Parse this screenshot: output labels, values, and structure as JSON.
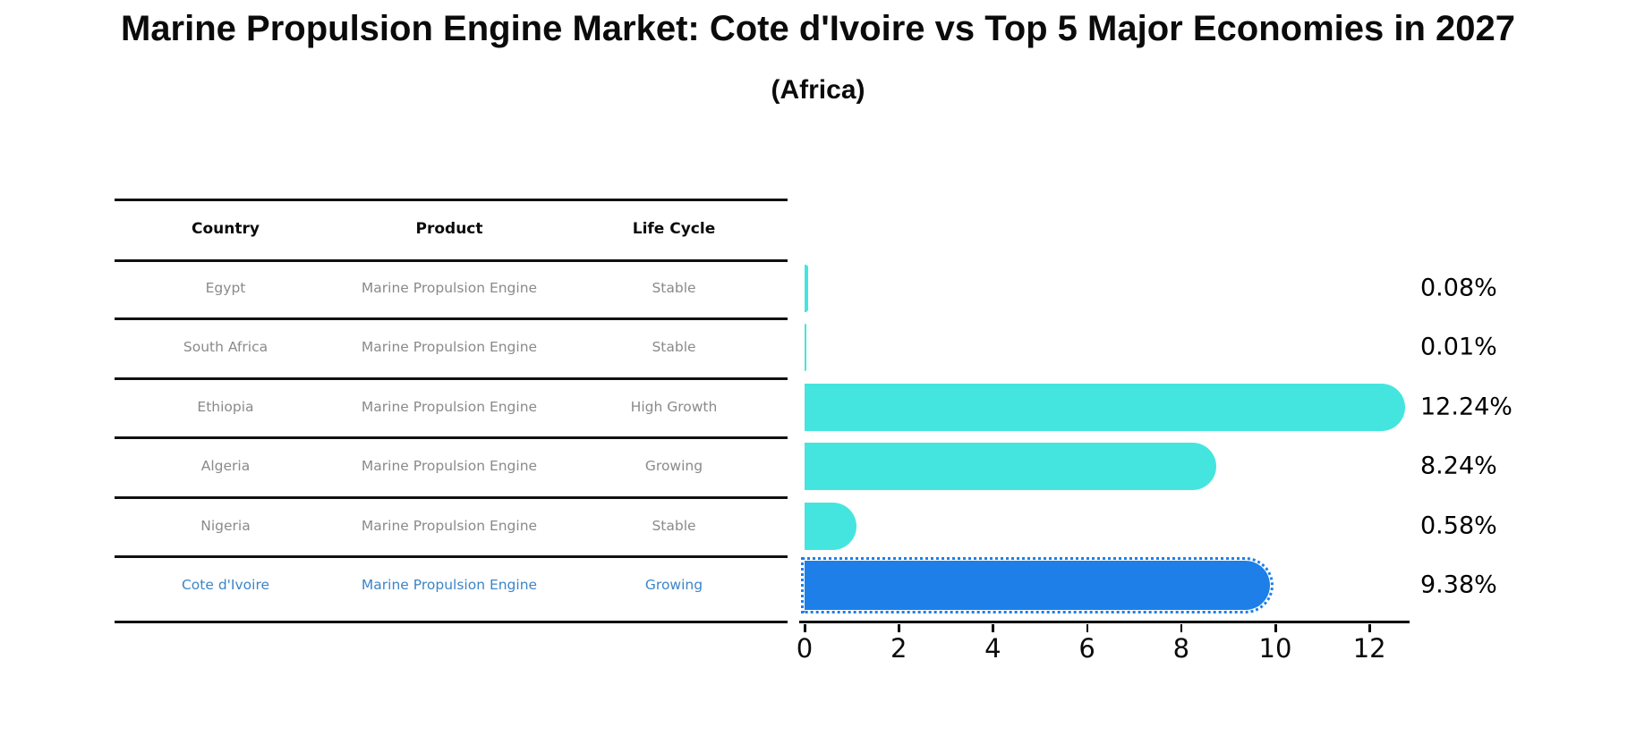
{
  "title": "Marine Propulsion Engine Market: Cote d'Ivoire vs Top 5 Major Economies in 2027",
  "subtitle": "(Africa)",
  "table": {
    "headers": [
      "Country",
      "Product",
      "Life Cycle"
    ],
    "rows": [
      {
        "country": "Egypt",
        "product": "Marine Propulsion Engine",
        "life_cycle": "Stable",
        "highlight": false
      },
      {
        "country": "South Africa",
        "product": "Marine Propulsion Engine",
        "life_cycle": "Stable",
        "highlight": false
      },
      {
        "country": "Ethiopia",
        "product": "Marine Propulsion Engine",
        "life_cycle": "High Growth",
        "highlight": false
      },
      {
        "country": "Algeria",
        "product": "Marine Propulsion Engine",
        "life_cycle": "Growing",
        "highlight": false
      },
      {
        "country": "Nigeria",
        "product": "Marine Propulsion Engine",
        "life_cycle": "Stable",
        "highlight": false
      },
      {
        "country": "Cote d'Ivoire",
        "product": "Marine Propulsion Engine",
        "life_cycle": "Growing",
        "highlight": true
      }
    ]
  },
  "chart_data": {
    "type": "bar",
    "orientation": "horizontal",
    "categories": [
      "Egypt",
      "South Africa",
      "Ethiopia",
      "Algeria",
      "Nigeria",
      "Cote d'Ivoire"
    ],
    "values": [
      0.08,
      0.01,
      12.24,
      8.24,
      0.58,
      9.38
    ],
    "value_labels": [
      "0.08%",
      "0.01%",
      "12.24%",
      "8.24%",
      "0.58%",
      "9.38%"
    ],
    "title": "Marine Propulsion Engine Market: Cote d'Ivoire vs Top 5 Major Economies in 2027 (Africa)",
    "xlabel": "",
    "ylabel": "",
    "xlim": [
      0,
      13
    ],
    "x_ticks": [
      0,
      2,
      4,
      6,
      8,
      10,
      12
    ],
    "grid": false,
    "legend": false,
    "highlight_index": 5,
    "bar_color": "#45e5df",
    "highlight_color": "#1e7fe8"
  },
  "colors": {
    "background": "#ffffff",
    "bar": "#45e5df",
    "highlight_bar": "#1e7fe8",
    "highlight_text": "#3c85c8",
    "row_text": "#8a8a8a",
    "heading_text": "#0b0b0b"
  }
}
